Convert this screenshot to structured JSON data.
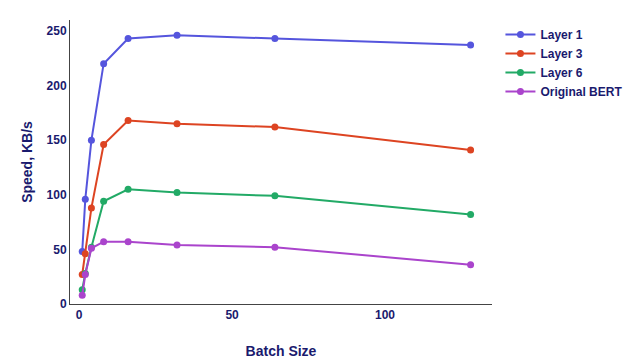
{
  "chart_data": {
    "type": "line",
    "xlabel": "Batch Size",
    "ylabel": "Speed, KB/s",
    "x": [
      1,
      2,
      4,
      8,
      16,
      32,
      64,
      128
    ],
    "series": [
      {
        "name": "Layer 1",
        "color": "#5555dd",
        "marker": "circle",
        "values": [
          48,
          96,
          150,
          220,
          243,
          246,
          243,
          237
        ]
      },
      {
        "name": "Layer 3",
        "color": "#dd4422",
        "marker": "circle",
        "values": [
          27,
          46,
          88,
          146,
          168,
          165,
          162,
          141
        ]
      },
      {
        "name": "Layer 6",
        "color": "#22aa66",
        "marker": "circle",
        "values": [
          13,
          28,
          52,
          94,
          105,
          102,
          99,
          82
        ]
      },
      {
        "name": "Original BERT",
        "color": "#aa44cc",
        "marker": "circle",
        "values": [
          8,
          27,
          51,
          57,
          57,
          54,
          52,
          36
        ]
      }
    ],
    "xlim": [
      -3,
      135
    ],
    "ylim": [
      0,
      260
    ],
    "xticks": [
      0,
      50,
      100
    ],
    "yticks": [
      0,
      50,
      100,
      150,
      200,
      250
    ],
    "grid": false,
    "legend": "right"
  }
}
